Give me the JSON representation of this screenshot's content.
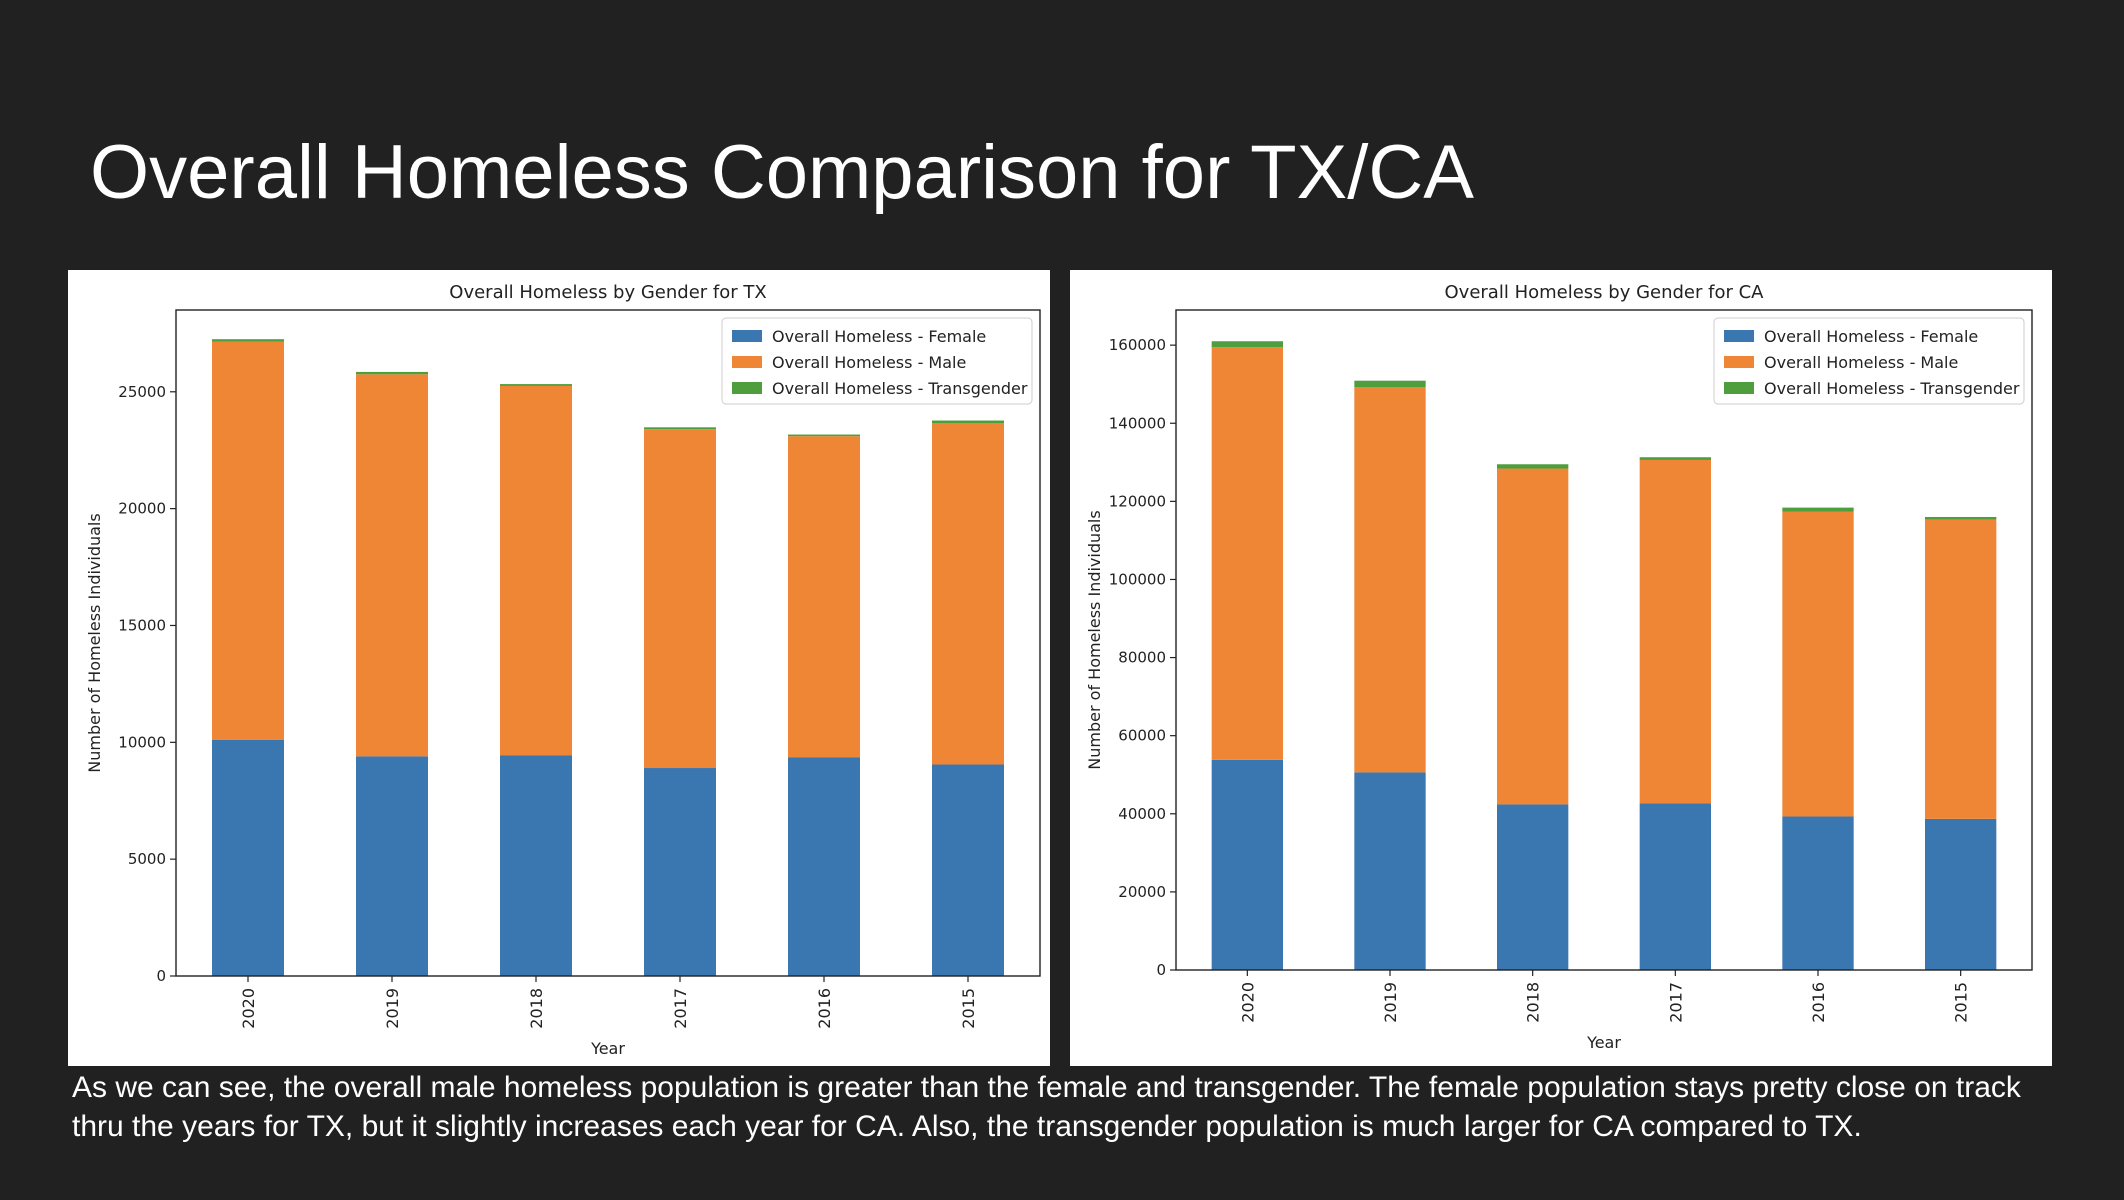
{
  "slide": {
    "title": "Overall Homeless Comparison for TX/CA",
    "caption": "As we can see, the overall male homeless population is greater than the female and transgender. The female population stays pretty close on track thru the years for TX, but it slightly increases each year for CA. Also, the transgender population is much larger for CA compared to TX."
  },
  "colors": {
    "female": "#3a76b0",
    "male": "#ef8636",
    "transgender": "#4e9e3e",
    "background": "#212121"
  },
  "chart_data": [
    {
      "type": "bar",
      "stacked": true,
      "title": "Overall Homeless by Gender for TX",
      "xlabel": "Year",
      "ylabel": "Number of Homeless Individuals",
      "categories": [
        "2020",
        "2019",
        "2018",
        "2017",
        "2016",
        "2015"
      ],
      "yticks": [
        0,
        5000,
        10000,
        15000,
        20000,
        25000
      ],
      "ylim": [
        0,
        28500
      ],
      "legend": "top-right",
      "series": [
        {
          "name": "Overall Homeless - Female",
          "values": [
            10100,
            9400,
            9450,
            8900,
            9350,
            9050
          ]
        },
        {
          "name": "Overall Homeless - Male",
          "values": [
            17050,
            16350,
            15800,
            14500,
            13750,
            14600
          ]
        },
        {
          "name": "Overall Homeless - Transgender",
          "values": [
            100,
            100,
            80,
            80,
            70,
            120
          ]
        }
      ]
    },
    {
      "type": "bar",
      "stacked": true,
      "title": "Overall Homeless by Gender for CA",
      "xlabel": "Year",
      "ylabel": "Number of Homeless Individuals",
      "categories": [
        "2020",
        "2019",
        "2018",
        "2017",
        "2016",
        "2015"
      ],
      "yticks": [
        0,
        20000,
        40000,
        60000,
        80000,
        100000,
        120000,
        140000,
        160000
      ],
      "ylim": [
        0,
        169000
      ],
      "legend": "top-right",
      "series": [
        {
          "name": "Overall Homeless - Female",
          "values": [
            53800,
            50600,
            42400,
            42700,
            39300,
            38700
          ]
        },
        {
          "name": "Overall Homeless - Male",
          "values": [
            105700,
            98600,
            86000,
            87900,
            78100,
            76600
          ]
        },
        {
          "name": "Overall Homeless - Transgender",
          "values": [
            1500,
            1700,
            1100,
            700,
            1000,
            700
          ]
        }
      ]
    }
  ]
}
